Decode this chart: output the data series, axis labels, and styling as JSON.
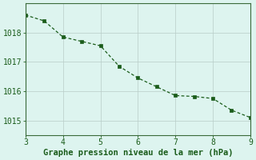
{
  "x": [
    3,
    3.5,
    4,
    4.5,
    5,
    5.5,
    6,
    6.5,
    7,
    7.5,
    8,
    8.5,
    9
  ],
  "y": [
    1018.6,
    1018.4,
    1017.85,
    1017.7,
    1017.55,
    1016.85,
    1016.45,
    1016.15,
    1015.85,
    1015.82,
    1015.75,
    1015.35,
    1015.1
  ],
  "line_color": "#1a5c1a",
  "marker_color": "#1a5c1a",
  "bg_color": "#ddf4ef",
  "grid_color": "#b8ccc8",
  "xlabel": "Graphe pression niveau de la mer (hPa)",
  "xlabel_color": "#1a5c1a",
  "xlim": [
    3,
    9
  ],
  "ylim": [
    1014.5,
    1019.0
  ],
  "yticks": [
    1015,
    1016,
    1017,
    1018
  ],
  "xticks": [
    3,
    4,
    5,
    6,
    7,
    8,
    9
  ],
  "tick_color": "#1a5c1a",
  "spine_color": "#3a6a3a",
  "tick_fontsize": 7,
  "xlabel_fontsize": 7.5
}
